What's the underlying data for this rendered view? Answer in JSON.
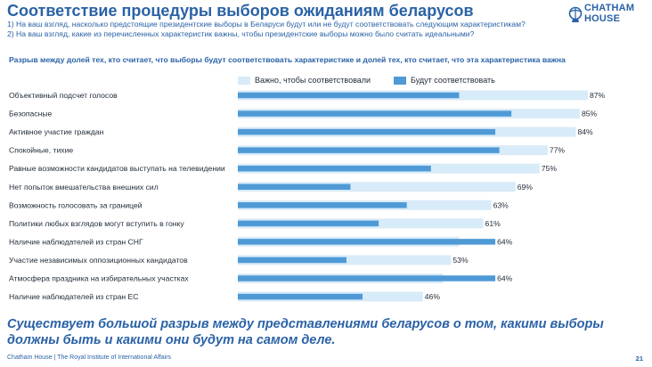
{
  "header": {
    "title": "Соответствие процедуры выборов ожиданиям беларусов",
    "question_1": "1) На ваш взгляд, насколько предстоящие президентские выборы в Беларуси будут или не будут соответствовать следующим характеристикам?",
    "question_2": "2) На ваш взгляд, какие из перечисленных характеристик важны, чтобы президентские выборы можно было считать идеальными?"
  },
  "logo": {
    "line1": "CHATHAM",
    "line2": "HOUSE",
    "icon": "globe-icon"
  },
  "subtitle": "Разрыв между долей тех, кто считает, что выборы будут соответствовать характеристике и долей тех, кто считает, что эта характеристика важна",
  "chart_data": {
    "type": "bar",
    "orientation": "horizontal",
    "title": "Разрыв между долей тех, кто считает, что выборы будут соответствовать характеристике и долей тех, кто считает, что эта характеристика важна",
    "legend": [
      "Важно, чтобы соответствовали",
      "Будут соответствовать"
    ],
    "legend_position": "top",
    "colors": {
      "important": "#d8ebf8",
      "actual": "#4f9ad6"
    },
    "xlim": [
      0,
      90
    ],
    "categories": [
      "Объективный подсчет голосов",
      "Безопасные",
      "Активное участие граждан",
      "Спокойные, тихие",
      "Равные возможности кандидатов выступать на телевидении",
      "Нет попыток вмешательства внешних сил",
      "Возможность голосовать за границей",
      "Политики любых взглядов могут вступить в гонку",
      "Наличие наблюдателей из стран СНГ",
      "Участие независимых оппозиционных кандидатов",
      "Атмосфера праздника на избирательных участках",
      "Наличие наблюдателей из стран ЕС"
    ],
    "series": [
      {
        "name": "Важно, чтобы соответствовали",
        "values": [
          87,
          85,
          84,
          77,
          75,
          69,
          63,
          61,
          55,
          53,
          51,
          46
        ]
      },
      {
        "name": "Будут соответствовать",
        "values": [
          55,
          68,
          64,
          65,
          48,
          28,
          42,
          35,
          64,
          27,
          64,
          31
        ]
      }
    ],
    "data_labels": [
      "87%",
      "85%",
      "84%",
      "77%",
      "75%",
      "69%",
      "63%",
      "61%",
      "64%",
      "53%",
      "64%",
      "46%"
    ]
  },
  "conclusion": "Существует большой разрыв между представлениями беларусов о том, какими выборы должны быть и какими они будут на самом деле.",
  "footer": {
    "text": "Chatham House  |  The Royal Institute of International Affairs",
    "page": "21"
  }
}
